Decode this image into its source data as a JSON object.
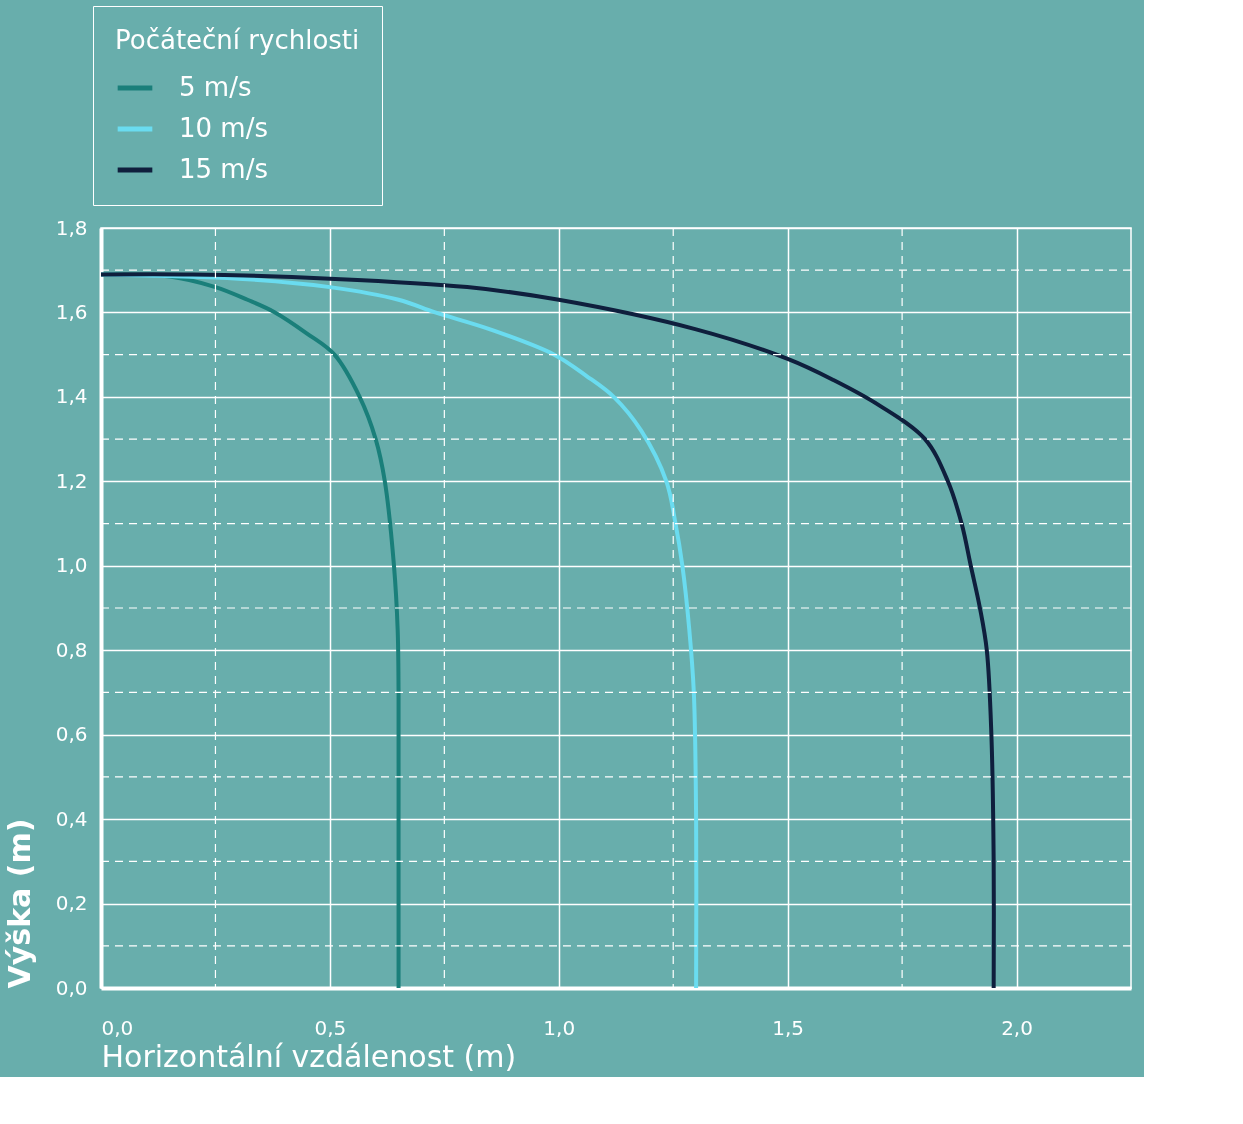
{
  "chart_data": {
    "type": "line",
    "xlabel": "Horizontální vzdálenost (m)",
    "ylabel": "Výška (m)",
    "legend_title": "Počáteční rychlosti",
    "legend": "top left",
    "grid": true,
    "line_style": "solid",
    "marker": "none",
    "xlim": [
      0,
      2.25
    ],
    "ylim": [
      0,
      1.8
    ],
    "xticks": [
      {
        "value": 0,
        "label": "0,0"
      },
      {
        "value": 0.25,
        "label": null
      },
      {
        "value": 0.5,
        "label": "0,5"
      },
      {
        "value": 0.75,
        "label": null
      },
      {
        "value": 1.0,
        "label": "1,0"
      },
      {
        "value": 1.25,
        "label": null
      },
      {
        "value": 1.5,
        "label": "1,5"
      },
      {
        "value": 1.75,
        "label": null
      },
      {
        "value": 2.0,
        "label": "2,0"
      }
    ],
    "yticks": [
      {
        "value": 0,
        "label": "0,0"
      },
      {
        "value": 0.1,
        "label": null
      },
      {
        "value": 0.2,
        "label": "0,2"
      },
      {
        "value": 0.3,
        "label": null
      },
      {
        "value": 0.4,
        "label": "0,4"
      },
      {
        "value": 0.5,
        "label": null
      },
      {
        "value": 0.6,
        "label": "0,6"
      },
      {
        "value": 0.7,
        "label": null
      },
      {
        "value": 0.8,
        "label": "0,8"
      },
      {
        "value": 0.9,
        "label": null
      },
      {
        "value": 1.0,
        "label": "1,0"
      },
      {
        "value": 1.1,
        "label": null
      },
      {
        "value": 1.2,
        "label": "1,2"
      },
      {
        "value": 1.3,
        "label": null
      },
      {
        "value": 1.4,
        "label": "1,4"
      },
      {
        "value": 1.5,
        "label": null
      },
      {
        "value": 1.6,
        "label": "1,6"
      },
      {
        "value": 1.7,
        "label": null
      },
      {
        "value": 1.8,
        "label": "1,8"
      }
    ],
    "series": [
      {
        "name": "5 m/s",
        "color": "#1a7f7a",
        "x": [
          0,
          0.15,
          0.25,
          0.32,
          0.38,
          0.45,
          0.51,
          0.565,
          0.6,
          0.62,
          0.64,
          0.648,
          0.65,
          0.65,
          0.65
        ],
        "values": [
          1.69,
          1.685,
          1.66,
          1.63,
          1.6,
          1.55,
          1.5,
          1.4,
          1.3,
          1.2,
          1.0,
          0.85,
          0.7,
          0.4,
          0
        ]
      },
      {
        "name": "10 m/s",
        "color": "#6adcf0",
        "x": [
          0,
          0.3,
          0.5,
          0.65,
          0.73,
          0.85,
          0.99,
          1.06,
          1.12,
          1.18,
          1.235,
          1.255,
          1.27,
          1.285,
          1.295,
          1.3,
          1.3
        ],
        "values": [
          1.69,
          1.68,
          1.66,
          1.63,
          1.6,
          1.56,
          1.5,
          1.45,
          1.4,
          1.32,
          1.2,
          1.1,
          1.0,
          0.85,
          0.7,
          0.4,
          0
        ]
      },
      {
        "name": "15 m/s",
        "color": "#0f1f3d",
        "x": [
          0,
          0.2,
          0.5,
          0.8,
          1.0,
          1.3,
          1.5,
          1.6,
          1.7,
          1.8,
          1.85,
          1.88,
          1.9,
          1.92,
          1.935,
          1.945,
          1.95,
          1.95
        ],
        "values": [
          1.69,
          1.69,
          1.68,
          1.66,
          1.63,
          1.56,
          1.49,
          1.44,
          1.38,
          1.3,
          1.2,
          1.1,
          1.0,
          0.9,
          0.8,
          0.6,
          0.3,
          0
        ]
      }
    ]
  }
}
